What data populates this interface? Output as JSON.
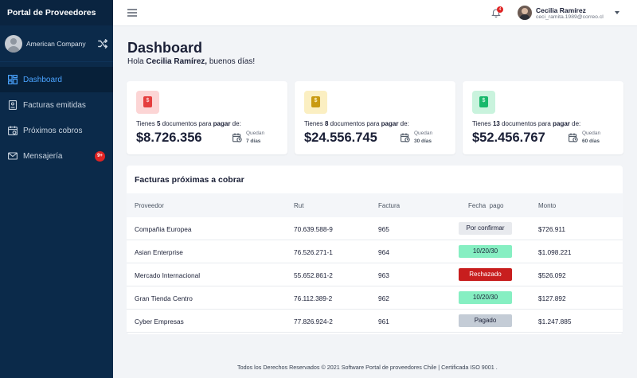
{
  "sidebar": {
    "brand": "Portal de Proveedores",
    "company": "American Company",
    "items": [
      {
        "label": "Dashboard",
        "icon": "dashboard-icon",
        "active": true
      },
      {
        "label": "Facturas emitidas",
        "icon": "invoice-icon"
      },
      {
        "label": "Próximos cobros",
        "icon": "calendar-icon"
      },
      {
        "label": "Mensajería",
        "icon": "mail-icon",
        "badge": "9+"
      }
    ]
  },
  "topbar": {
    "notification_badge": "4",
    "user_name": "Cecilia Ramírez",
    "user_email": "ceci_ramita.1989@correo.cl"
  },
  "page": {
    "title": "Dashboard",
    "greeting_prefix": "Hola ",
    "greeting_name": "Cecilia Ramírez,",
    "greeting_suffix": " buenos días!"
  },
  "cards": [
    {
      "pre": "Tienes ",
      "count": "5",
      "mid": " documentos para ",
      "action": "pagar",
      "post": " de:",
      "amount": "$8.726.356",
      "queda": "Quedan",
      "dias": "7 días",
      "color": "#e53e3e",
      "bg": "#fcd5d5"
    },
    {
      "pre": "Tienes ",
      "count": "8",
      "mid": " documentos para ",
      "action": "pagar",
      "post": " de:",
      "amount": "$24.556.745",
      "queda": "Quedan",
      "dias": "30 días",
      "color": "#c99a12",
      "bg": "#fbefc2"
    },
    {
      "pre": "Tienes ",
      "count": "13",
      "mid": " documentos para ",
      "action": "pagar",
      "post": " de:",
      "amount": "$52.456.767",
      "queda": "Quedan",
      "dias": "60 días",
      "color": "#18b86b",
      "bg": "#c9f3dd"
    }
  ],
  "table": {
    "title": "Facturas próximas a cobrar",
    "headers": {
      "proveedor": "Proveedor",
      "rut": "Rut",
      "factura": "Factura",
      "fecha": "Fecha  pago",
      "monto": "Monto"
    },
    "rows": [
      {
        "proveedor": "Compañia Europea",
        "rut": "70.639.588-9",
        "factura": "965",
        "status": "Por confirmar",
        "kind": "confirm",
        "monto": "$726.911"
      },
      {
        "proveedor": "Asian Enterprise",
        "rut": "76.526.271-1",
        "factura": "964",
        "status": "10/20/30",
        "kind": "date",
        "monto": "$1.098.221"
      },
      {
        "proveedor": "Mercado Internacional",
        "rut": "55.652.861-2",
        "factura": "963",
        "status": "Rechazado",
        "kind": "rejected",
        "monto": "$526.092"
      },
      {
        "proveedor": "Gran Tienda Centro",
        "rut": "76.112.389-2",
        "factura": "962",
        "status": "10/20/30",
        "kind": "date",
        "monto": "$127.892"
      },
      {
        "proveedor": "Cyber Empresas",
        "rut": "77.826.924-2",
        "factura": "961",
        "status": "Pagado",
        "kind": "paid",
        "monto": "$1.247.885"
      }
    ]
  },
  "footer": "Todos los Derechos Reservados © 2021 Software Portal de proveedores Chile | Certificada ISO 9001 ."
}
